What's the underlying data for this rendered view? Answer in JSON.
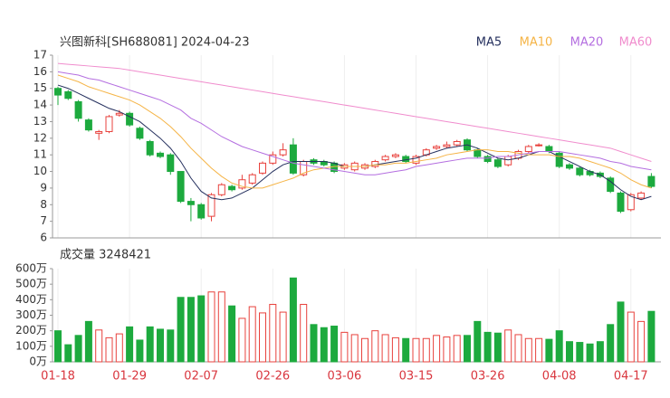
{
  "chart_data": {
    "type": "candlestick",
    "title": "兴图新科[SH688081] 2024-04-23",
    "categories": [
      "01-18",
      null,
      null,
      null,
      null,
      null,
      null,
      "01-29",
      null,
      null,
      null,
      null,
      null,
      null,
      "02-07",
      null,
      null,
      null,
      null,
      null,
      null,
      "02-26",
      null,
      null,
      null,
      null,
      null,
      null,
      "03-06",
      null,
      null,
      null,
      null,
      null,
      null,
      "03-15",
      null,
      null,
      null,
      null,
      null,
      null,
      "03-26",
      null,
      null,
      null,
      null,
      null,
      null,
      "04-08",
      null,
      null,
      null,
      null,
      null,
      null,
      "04-17",
      null,
      null
    ],
    "open": [
      15.0,
      14.8,
      14.2,
      13.1,
      12.3,
      12.4,
      13.4,
      13.5,
      12.6,
      11.8,
      11.1,
      11.0,
      10.0,
      8.2,
      8.0,
      7.3,
      8.6,
      9.1,
      9.0,
      9.3,
      9.9,
      10.5,
      11.0,
      11.6,
      9.8,
      10.7,
      10.6,
      10.5,
      10.2,
      10.1,
      10.2,
      10.3,
      10.7,
      10.9,
      10.9,
      10.5,
      11.0,
      11.4,
      11.5,
      11.6,
      11.9,
      11.3,
      10.9,
      10.7,
      10.4,
      10.8,
      11.2,
      11.6,
      11.5,
      11.1,
      10.4,
      10.2,
      10.0,
      9.9,
      9.6,
      8.7,
      7.7,
      8.4,
      9.7
    ],
    "high": [
      15.1,
      14.9,
      14.3,
      13.2,
      12.5,
      13.4,
      13.7,
      13.6,
      12.7,
      11.9,
      11.2,
      11.1,
      10.0,
      8.4,
      8.1,
      8.7,
      9.3,
      9.2,
      9.8,
      9.9,
      10.6,
      11.2,
      11.7,
      12.0,
      10.7,
      10.8,
      10.7,
      10.6,
      10.5,
      10.6,
      10.5,
      10.7,
      11.0,
      11.1,
      11.0,
      11.0,
      11.4,
      11.6,
      11.8,
      11.9,
      12.0,
      11.4,
      11.0,
      10.8,
      11.0,
      11.3,
      11.6,
      11.7,
      11.6,
      11.2,
      10.5,
      10.3,
      10.1,
      10.0,
      9.7,
      8.8,
      8.7,
      8.8,
      9.9
    ],
    "low": [
      14.0,
      14.3,
      13.0,
      12.4,
      11.9,
      12.3,
      13.3,
      12.7,
      11.9,
      10.9,
      10.8,
      9.8,
      8.1,
      7.0,
      7.1,
      7.0,
      8.5,
      8.8,
      8.9,
      9.2,
      9.8,
      10.4,
      10.9,
      9.8,
      9.7,
      10.4,
      10.3,
      9.9,
      10.1,
      10.0,
      10.1,
      10.2,
      10.6,
      10.8,
      10.5,
      10.4,
      10.9,
      11.3,
      11.4,
      11.5,
      11.2,
      10.8,
      10.5,
      10.2,
      10.3,
      10.7,
      11.1,
      11.5,
      11.1,
      10.2,
      10.1,
      9.7,
      9.7,
      9.6,
      8.7,
      7.5,
      7.6,
      8.3,
      9.0
    ],
    "close": [
      14.6,
      14.4,
      13.2,
      12.5,
      12.4,
      13.3,
      13.5,
      12.8,
      12.0,
      11.0,
      10.9,
      10.0,
      8.2,
      8.0,
      7.2,
      8.6,
      9.2,
      8.9,
      9.5,
      9.8,
      10.5,
      11.0,
      11.3,
      9.9,
      10.6,
      10.5,
      10.4,
      10.0,
      10.4,
      10.5,
      10.4,
      10.6,
      10.9,
      11.0,
      10.6,
      10.9,
      11.3,
      11.5,
      11.6,
      11.8,
      11.3,
      10.9,
      10.6,
      10.3,
      10.9,
      11.2,
      11.5,
      11.6,
      11.2,
      10.3,
      10.2,
      9.8,
      9.8,
      9.7,
      8.8,
      7.6,
      8.6,
      8.7,
      9.1
    ],
    "up_color": "#e8413c",
    "down_color": "#1daa3e",
    "ylim": [
      6,
      17
    ],
    "yticks": [
      6,
      7,
      8,
      9,
      10,
      11,
      12,
      13,
      14,
      15,
      16,
      17
    ],
    "series": [
      {
        "name": "MA5",
        "color": "#25305e",
        "values": [
          15.2,
          15.0,
          14.7,
          14.4,
          14.1,
          13.8,
          13.6,
          13.3,
          13.0,
          12.5,
          12.0,
          11.4,
          10.6,
          9.6,
          8.8,
          8.4,
          8.3,
          8.4,
          8.7,
          9.0,
          9.5,
          10.0,
          10.4,
          10.6,
          10.6,
          10.6,
          10.6,
          10.5,
          10.3,
          10.3,
          10.3,
          10.4,
          10.5,
          10.6,
          10.7,
          10.8,
          11.0,
          11.2,
          11.4,
          11.5,
          11.6,
          11.4,
          11.1,
          10.8,
          10.7,
          10.8,
          11.0,
          11.2,
          11.2,
          10.9,
          10.6,
          10.3,
          10.0,
          9.8,
          9.4,
          8.9,
          8.5,
          8.3,
          8.5
        ]
      },
      {
        "name": "MA10",
        "color": "#f5b446",
        "values": [
          15.8,
          15.6,
          15.4,
          15.1,
          14.9,
          14.7,
          14.5,
          14.3,
          14.0,
          13.6,
          13.2,
          12.7,
          12.1,
          11.4,
          10.8,
          10.2,
          9.7,
          9.3,
          9.1,
          9.0,
          9.0,
          9.2,
          9.4,
          9.6,
          9.9,
          10.1,
          10.2,
          10.3,
          10.3,
          10.3,
          10.3,
          10.4,
          10.4,
          10.5,
          10.5,
          10.6,
          10.7,
          10.8,
          11.0,
          11.1,
          11.2,
          11.3,
          11.3,
          11.2,
          11.2,
          11.1,
          11.0,
          11.0,
          11.0,
          10.9,
          10.9,
          10.8,
          10.6,
          10.4,
          10.2,
          9.9,
          9.5,
          9.2,
          9.0
        ]
      },
      {
        "name": "MA20",
        "color": "#b46ee0",
        "values": [
          16.0,
          15.9,
          15.8,
          15.6,
          15.5,
          15.3,
          15.1,
          14.9,
          14.7,
          14.5,
          14.3,
          14.0,
          13.7,
          13.2,
          12.9,
          12.5,
          12.1,
          11.8,
          11.5,
          11.3,
          11.1,
          10.9,
          10.7,
          10.5,
          10.4,
          10.3,
          10.2,
          10.1,
          10.0,
          9.9,
          9.8,
          9.8,
          9.9,
          10.0,
          10.1,
          10.3,
          10.4,
          10.5,
          10.6,
          10.7,
          10.8,
          10.8,
          10.8,
          10.9,
          10.9,
          11.0,
          11.1,
          11.2,
          11.2,
          11.2,
          11.1,
          11.0,
          10.9,
          10.8,
          10.6,
          10.5,
          10.3,
          10.2,
          10.1
        ]
      },
      {
        "name": "MA60",
        "color": "#f08ccd",
        "values": [
          16.5,
          16.45,
          16.4,
          16.35,
          16.3,
          16.25,
          16.2,
          16.1,
          16.0,
          15.9,
          15.8,
          15.7,
          15.6,
          15.5,
          15.4,
          15.3,
          15.2,
          15.1,
          15.0,
          14.9,
          14.8,
          14.7,
          14.6,
          14.5,
          14.4,
          14.3,
          14.2,
          14.1,
          14.0,
          13.9,
          13.8,
          13.7,
          13.6,
          13.5,
          13.4,
          13.3,
          13.2,
          13.1,
          13.0,
          12.9,
          12.8,
          12.7,
          12.6,
          12.5,
          12.4,
          12.3,
          12.2,
          12.1,
          12.0,
          11.9,
          11.8,
          11.7,
          11.6,
          11.5,
          11.4,
          11.2,
          11.0,
          10.8,
          10.6
        ]
      }
    ],
    "volume": {
      "label": "成交量 3248421",
      "values": [
        200,
        110,
        170,
        260,
        205,
        155,
        180,
        225,
        140,
        225,
        210,
        205,
        415,
        415,
        425,
        450,
        450,
        360,
        280,
        355,
        315,
        370,
        320,
        540,
        370,
        240,
        220,
        230,
        190,
        175,
        150,
        200,
        175,
        155,
        150,
        150,
        150,
        170,
        160,
        170,
        170,
        260,
        190,
        185,
        205,
        175,
        150,
        150,
        145,
        200,
        130,
        125,
        115,
        130,
        240,
        385,
        320,
        260,
        325
      ],
      "ylim": [
        0,
        600
      ],
      "yticks": [
        {
          "value": 0,
          "label": "0万"
        },
        {
          "value": 100,
          "label": "100万"
        },
        {
          "value": 200,
          "label": "200万"
        },
        {
          "value": 300,
          "label": "300万"
        },
        {
          "value": 400,
          "label": "400万"
        },
        {
          "value": 500,
          "label": "500万"
        },
        {
          "value": 600,
          "label": "600万"
        }
      ]
    }
  }
}
